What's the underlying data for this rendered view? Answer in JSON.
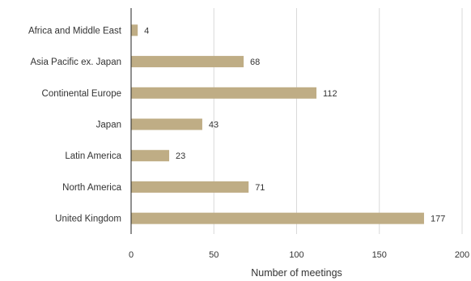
{
  "chart_data": {
    "type": "bar",
    "orientation": "horizontal",
    "categories": [
      "Africa and Middle East",
      "Asia Pacific ex. Japan",
      "Continental Europe",
      "Japan",
      "Latin America",
      "North America",
      "United Kingdom"
    ],
    "values": [
      4,
      68,
      112,
      43,
      23,
      71,
      177
    ],
    "xlabel": "Number of meetings",
    "ylabel": "",
    "xlim": [
      0,
      200
    ],
    "xticks": [
      0,
      50,
      100,
      150,
      200
    ],
    "grid": true,
    "bar_color": "#bfad85"
  }
}
